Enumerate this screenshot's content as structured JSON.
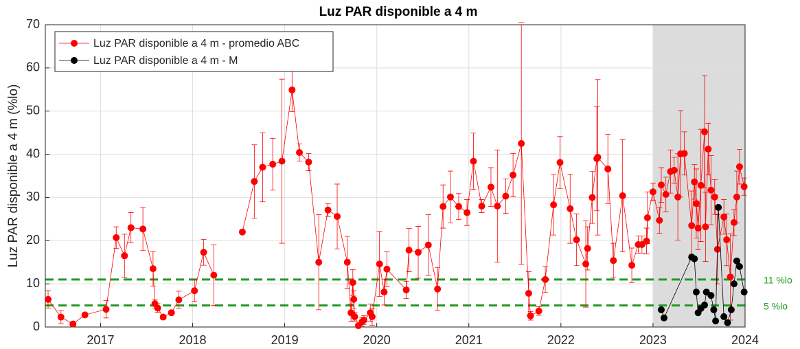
{
  "chart_data": {
    "type": "line",
    "title": "Luz PAR disponible a 4 m",
    "ylabel": "Luz PAR disponible a 4 m (%lo)",
    "xlim": [
      2016.4,
      2024.0
    ],
    "xticks": [
      2017,
      2018,
      2019,
      2020,
      2021,
      2022,
      2023,
      2024
    ],
    "ylim": [
      0,
      70
    ],
    "yticks": [
      0,
      10,
      20,
      30,
      40,
      50,
      60,
      70
    ],
    "grid": true,
    "legend": "upper left",
    "shaded": {
      "from": 2023,
      "to": 2024,
      "color": "#dcdcdc"
    },
    "hlines": [
      {
        "value": 11,
        "label": "11 %lo",
        "color": "#1f9a1f"
      },
      {
        "value": 5,
        "label": "5 %lo",
        "color": "#1f9a1f"
      }
    ],
    "series": [
      {
        "name": "Luz PAR disponible a 4 m - promedio ABC",
        "color": "#ff0000",
        "x": [
          2016.43,
          2016.57,
          2016.7,
          2016.83,
          2017.06,
          2017.17,
          2017.26,
          2017.33,
          2017.46,
          2017.57,
          2017.59,
          2017.62,
          2017.68,
          2017.77,
          2017.85,
          2018.02,
          2018.12,
          2018.23,
          2018.38,
          2018.54,
          2018.67,
          2018.76,
          2018.87,
          2018.97,
          2019.08,
          2019.16,
          2019.26,
          2019.37,
          2019.47,
          2019.57,
          2019.68,
          2019.72,
          2019.74,
          2019.75,
          2019.76,
          2019.8,
          2019.84,
          2019.86,
          2019.93,
          2019.95,
          2020.03,
          2020.08,
          2020.11,
          2020.32,
          2020.35,
          2020.45,
          2020.56,
          2020.66,
          2020.72,
          2020.8,
          2020.89,
          2020.98,
          2021.05,
          2021.14,
          2021.24,
          2021.31,
          2021.4,
          2021.48,
          2021.57,
          2021.65,
          2021.67,
          2021.76,
          2021.83,
          2021.92,
          2021.99,
          2022.1,
          2022.17,
          2022.27,
          2022.29,
          2022.34,
          2022.39,
          2022.4,
          2022.51,
          2022.57,
          2022.67,
          2022.77,
          2022.84,
          2022.88,
          2022.93,
          2022.94,
          2023.0,
          2023.07,
          2023.09,
          2023.14,
          2023.19,
          2023.23,
          2023.27,
          2023.3,
          2023.34,
          2023.42,
          2023.45,
          2023.47,
          2023.49,
          2023.52,
          2023.56,
          2023.57,
          2023.6,
          2023.63,
          2023.67,
          2023.7,
          2023.77,
          2023.8,
          2023.84,
          2023.88,
          2023.91,
          2023.94,
          2023.99
        ],
        "values": [
          6.4,
          2.3,
          0.7,
          2.8,
          4.1,
          20.7,
          16.5,
          23,
          22.7,
          13.5,
          5.4,
          4.4,
          2.3,
          3.3,
          6.3,
          8.4,
          17.3,
          12.0,
          null,
          22.0,
          33.7,
          37.0,
          37.7,
          38.4,
          54.9,
          40.4,
          38.2,
          15.0,
          27.1,
          25.6,
          15.0,
          3.3,
          10.3,
          6.4,
          2.4,
          0.3,
          1.2,
          1.6,
          3.3,
          2.4,
          14.6,
          8.1,
          13.4,
          8.6,
          17.8,
          17.3,
          19.0,
          8.8,
          27.9,
          30.1,
          27.9,
          26.5,
          38.4,
          28.0,
          32.4,
          28.0,
          30.3,
          35.2,
          42.5,
          7.8,
          2.6,
          3.7,
          11.0,
          28.3,
          38.1,
          27.4,
          20.2,
          14.6,
          18.2,
          30.0,
          39.0,
          39.3,
          36.6,
          15.4,
          30.4,
          14.3,
          19.1,
          19.1,
          19.9,
          25.3,
          31.3,
          24.7,
          32.9,
          30.7,
          36.0,
          36.3,
          30.1,
          40.1,
          40.2,
          23.5,
          33.6,
          28.6,
          22.9,
          32.8,
          45.2,
          23.2,
          41.2,
          31.7,
          30.1,
          18.0,
          25.5,
          20.2,
          11.6,
          24.2,
          30.1,
          37.1,
          32.5
        ],
        "errors": [
          2,
          1.5,
          0.5,
          0.5,
          2,
          2.5,
          5,
          3.5,
          5,
          4,
          1,
          1,
          0.5,
          0.5,
          2,
          2.5,
          3,
          7,
          null,
          0.3,
          8.5,
          8,
          6,
          19,
          5,
          2,
          2,
          11,
          1.5,
          7.5,
          6,
          2,
          3,
          2,
          1,
          0.5,
          1,
          1,
          2,
          2,
          7.5,
          3,
          4,
          2,
          5,
          6,
          7,
          5,
          5,
          6,
          3,
          3,
          6.5,
          1.5,
          4.5,
          13,
          4,
          5,
          28,
          5,
          1,
          1,
          3,
          7,
          6,
          8,
          6,
          10,
          5,
          6,
          12,
          18,
          8,
          4,
          13,
          4,
          2,
          2,
          3,
          6,
          2,
          3,
          4,
          4,
          5,
          3,
          10,
          10,
          5,
          8,
          4,
          8,
          5,
          13,
          13,
          8,
          6,
          8,
          4,
          8,
          4,
          6,
          10,
          3,
          6,
          4,
          2
        ]
      },
      {
        "name": "Luz PAR disponible a 4 m - M",
        "color": "#000000",
        "x": [
          2023.09,
          2023.12,
          2023.42,
          2023.45,
          2023.47,
          2023.49,
          2023.52,
          2023.56,
          2023.58,
          2023.63,
          2023.66,
          2023.68,
          2023.71,
          2023.77,
          2023.81,
          2023.85,
          2023.88,
          2023.91,
          2023.94,
          2023.99
        ],
        "values": [
          4.0,
          2.1,
          16.2,
          15.8,
          8.1,
          3.3,
          4.3,
          5.1,
          8.1,
          7.3,
          4.0,
          1.4,
          27.7,
          2.4,
          1.0,
          4.0,
          10.0,
          15.3,
          14.0,
          8.1
        ]
      }
    ]
  }
}
